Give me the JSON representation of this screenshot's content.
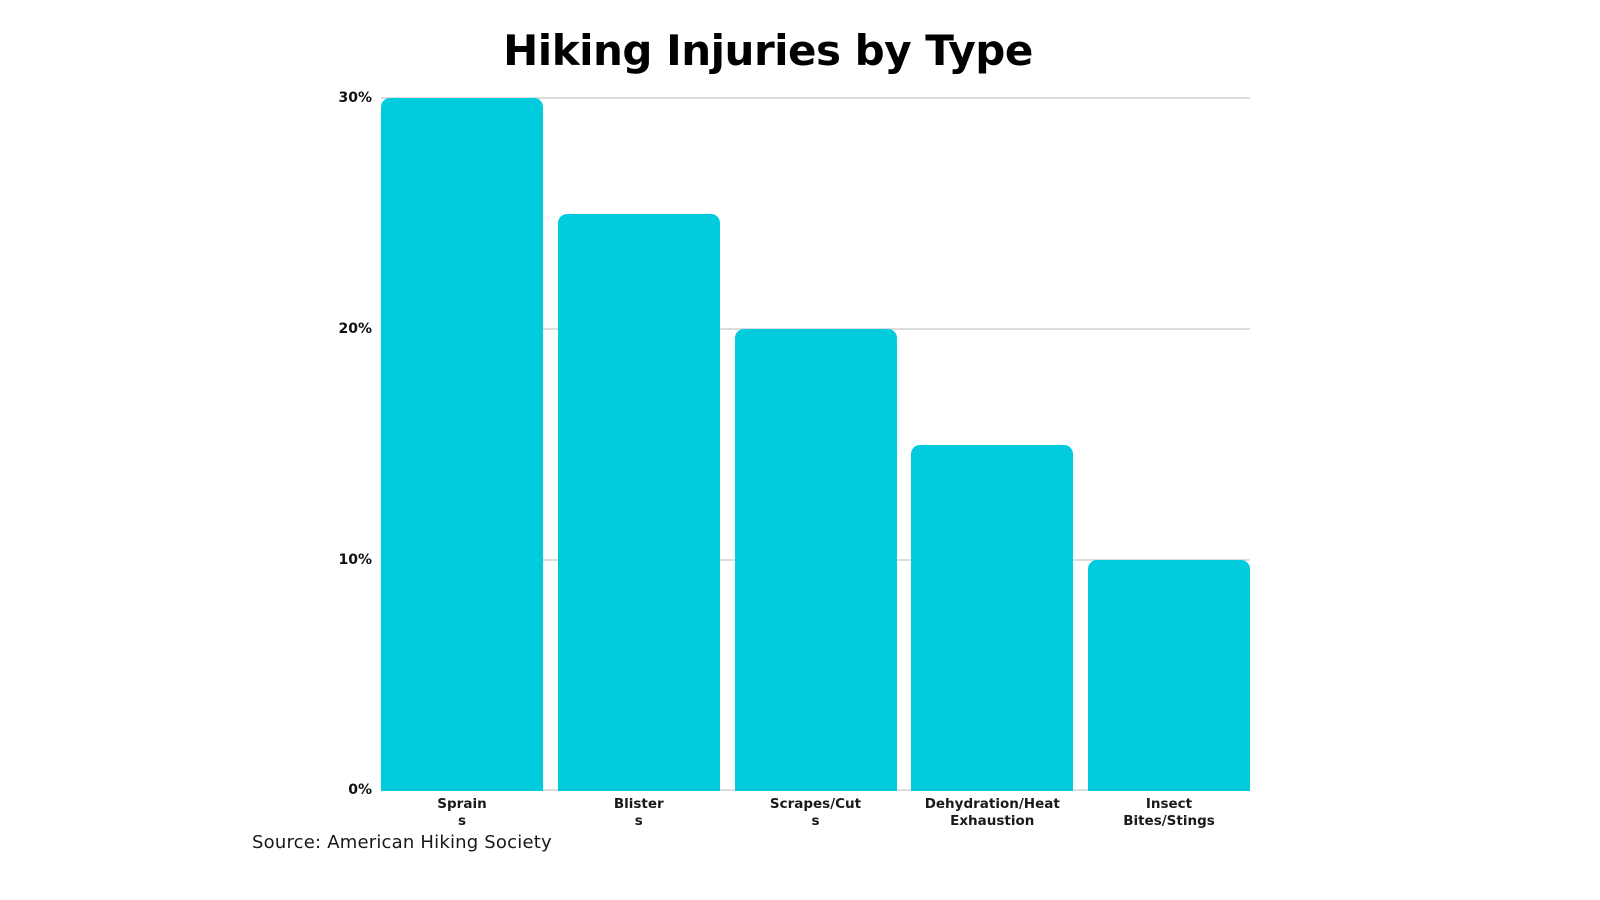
{
  "page": {
    "background": "#ffffff"
  },
  "colors": {
    "bar": "#00CCDE",
    "gridline": "#dcdcdc",
    "title_text": "#000000",
    "axis_text": "#1a1a1a"
  },
  "chart_data": {
    "type": "bar",
    "title": "Hiking Injuries by Type",
    "categories": [
      "Sprains",
      "Blisters",
      "Scrapes/Cuts",
      "Dehydration/Heat Exhaustion",
      "Insect Bites/Stings"
    ],
    "category_label_lines": [
      [
        "Sprain",
        "s"
      ],
      [
        "Blister",
        "s"
      ],
      [
        "Scrapes/Cut",
        "s"
      ],
      [
        "Dehydration/Heat",
        "Exhaustion"
      ],
      [
        "Insect",
        "Bites/Stings"
      ]
    ],
    "values": [
      30,
      25,
      20,
      15,
      10
    ],
    "value_unit": "%",
    "xlabel": "",
    "ylabel": "",
    "ylim": [
      0,
      30
    ],
    "yticks": [
      0,
      10,
      20,
      30
    ],
    "ytick_labels": [
      "0%",
      "10%",
      "20%",
      "30%"
    ],
    "grid": true,
    "legend": false,
    "source_note": "Source: American Hiking Society"
  }
}
